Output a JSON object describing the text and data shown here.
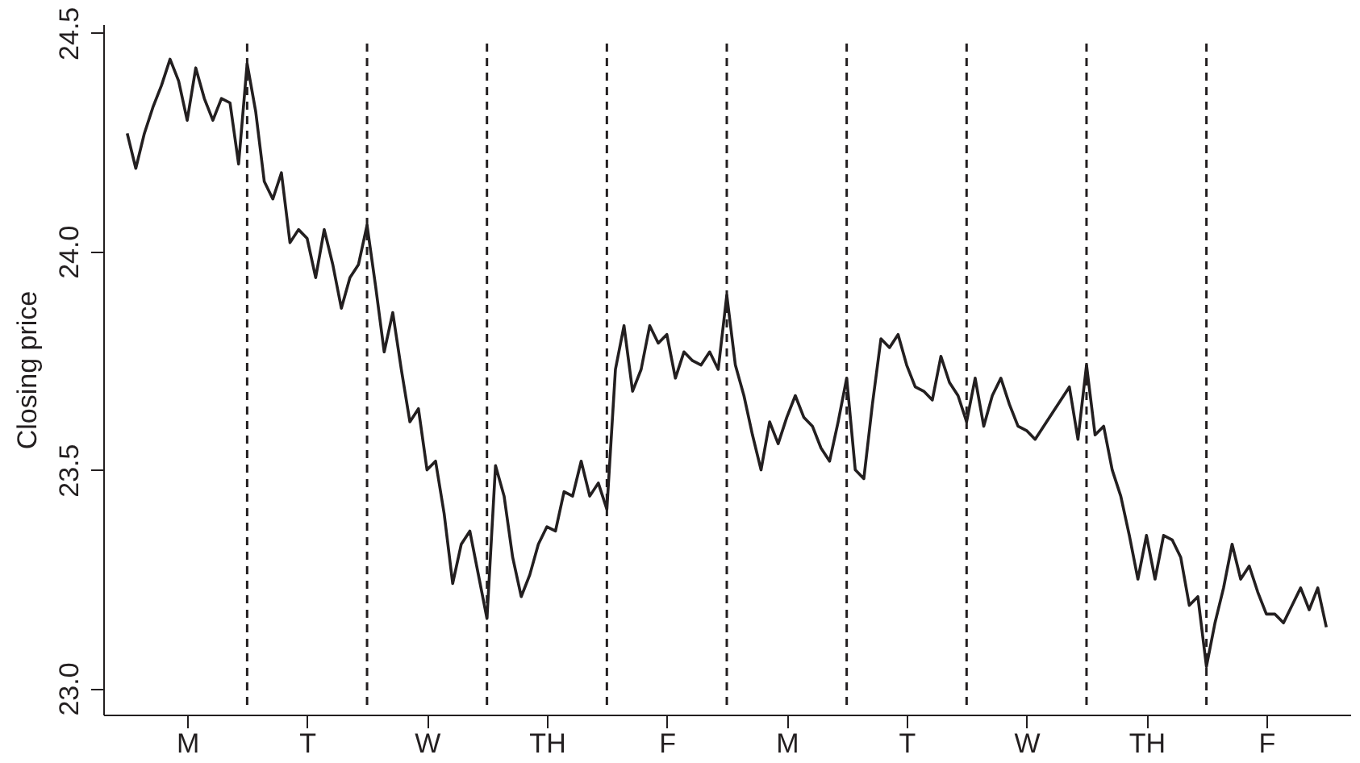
{
  "chart_data": {
    "type": "line",
    "ylabel": "Closing price",
    "categories": [
      null,
      null,
      null,
      null,
      null,
      null,
      null,
      "M",
      null,
      null,
      null,
      null,
      null,
      null,
      null,
      null,
      null,
      null,
      null,
      null,
      null,
      "T",
      null,
      null,
      null,
      null,
      null,
      null,
      null,
      null,
      null,
      null,
      null,
      null,
      null,
      "W",
      null,
      null,
      null,
      null,
      null,
      null,
      null,
      null,
      null,
      null,
      null,
      null,
      null,
      "TH",
      null,
      null,
      null,
      null,
      null,
      null,
      null,
      null,
      null,
      null,
      null,
      null,
      null,
      "F",
      null,
      null,
      null,
      null,
      null,
      null,
      null,
      null,
      null,
      null,
      null,
      null,
      null,
      "M",
      null,
      null,
      null,
      null,
      null,
      null,
      null,
      null,
      null,
      null,
      null,
      null,
      null,
      "T",
      null,
      null,
      null,
      null,
      null,
      null,
      null,
      null,
      null,
      null,
      null,
      null,
      null,
      "W",
      null,
      null,
      null,
      null,
      null,
      null,
      null,
      null,
      null,
      null,
      null,
      null,
      null,
      "TH",
      null,
      null,
      null,
      null,
      null,
      null,
      null,
      null,
      null,
      null,
      null,
      null,
      null,
      "F",
      null,
      null,
      null,
      null,
      null,
      null,
      null
    ],
    "series": [
      {
        "color": "#231f20",
        "values": [
          24.27,
          24.19,
          24.27,
          24.33,
          24.38,
          24.44,
          24.39,
          24.3,
          24.42,
          24.35,
          24.3,
          24.35,
          24.34,
          24.2,
          24.43,
          24.32,
          24.16,
          24.12,
          24.18,
          24.02,
          24.05,
          24.03,
          23.94,
          24.05,
          23.97,
          23.87,
          23.94,
          23.97,
          24.06,
          23.92,
          23.77,
          23.86,
          23.73,
          23.61,
          23.64,
          23.5,
          23.52,
          23.4,
          23.24,
          23.33,
          23.36,
          23.26,
          23.16,
          23.51,
          23.44,
          23.3,
          23.21,
          23.26,
          23.33,
          23.37,
          23.36,
          23.45,
          23.44,
          23.52,
          23.44,
          23.47,
          23.41,
          23.73,
          23.83,
          23.68,
          23.73,
          23.83,
          23.79,
          23.81,
          23.71,
          23.77,
          23.75,
          23.74,
          23.77,
          23.73,
          23.9,
          23.74,
          23.67,
          23.58,
          23.5,
          23.61,
          23.56,
          23.62,
          23.67,
          23.62,
          23.6,
          23.55,
          23.52,
          23.61,
          23.71,
          23.5,
          23.48,
          23.65,
          23.8,
          23.78,
          23.81,
          23.74,
          23.69,
          23.68,
          23.66,
          23.76,
          23.7,
          23.67,
          23.61,
          23.71,
          23.6,
          23.67,
          23.71,
          23.65,
          23.6,
          23.59,
          23.57,
          23.6,
          23.63,
          23.66,
          23.69,
          23.57,
          23.74,
          23.58,
          23.6,
          23.5,
          23.44,
          23.35,
          23.25,
          23.35,
          23.25,
          23.35,
          23.34,
          23.3,
          23.19,
          23.21,
          23.05,
          23.15,
          23.23,
          23.33,
          23.25,
          23.28,
          23.22,
          23.17,
          23.17,
          23.15,
          23.19,
          23.23,
          23.18,
          23.23,
          23.14
        ]
      }
    ],
    "ylim": [
      22.94,
      24.52
    ],
    "yticks": [
      {
        "value": 23,
        "label": "23.0"
      },
      {
        "value": 23.5,
        "label": "23.5"
      },
      {
        "value": 24,
        "label": "24.0"
      },
      {
        "value": 24.5,
        "label": "24.5"
      }
    ],
    "grid": false,
    "legend": false,
    "marker": "none",
    "line_style": "solid"
  }
}
